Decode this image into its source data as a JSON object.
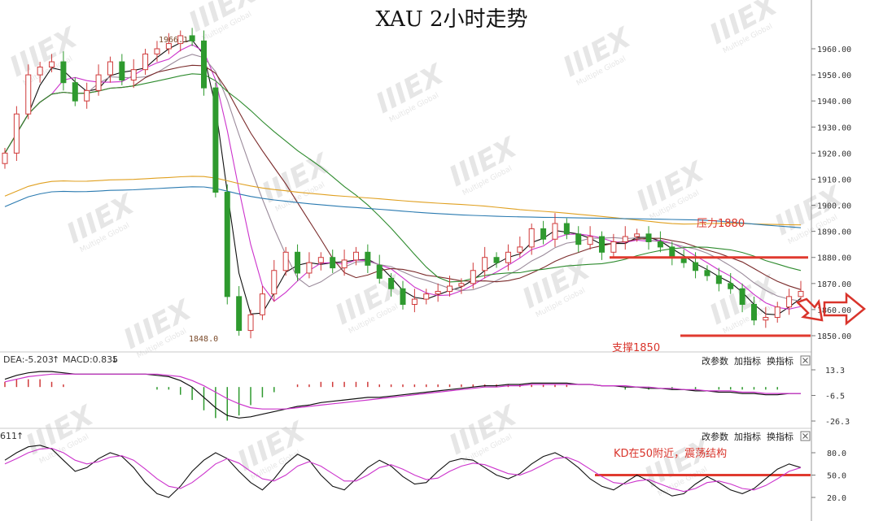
{
  "chart_data": {
    "title": "XAU 2小时走势",
    "type": "candlestick",
    "price_axis": {
      "ticks": [
        1850.0,
        1860.0,
        1870.0,
        1880.0,
        1890.0,
        1900.0,
        1910.0,
        1920.0,
        1930.0,
        1940.0,
        1950.0,
        1960.0
      ],
      "range": [
        1843,
        1972
      ]
    },
    "high_label": "1966.1",
    "low_label": "1848.0",
    "high": 1966.1,
    "low": 1848.0,
    "levels": [
      {
        "price": 1880,
        "label": "压力1880",
        "color": "#e03a2f"
      },
      {
        "price": 1850,
        "label": "支撑1850",
        "color": "#e03a2f"
      }
    ],
    "close_series": [
      1920,
      1935,
      1950,
      1953,
      1955,
      1947,
      1940,
      1944,
      1950,
      1955,
      1948,
      1952,
      1958,
      1960,
      1962,
      1965,
      1963,
      1945,
      1905,
      1865,
      1852,
      1858,
      1866,
      1875,
      1882,
      1874,
      1878,
      1880,
      1876,
      1879,
      1882,
      1877,
      1872,
      1868,
      1862,
      1864,
      1866,
      1867,
      1869,
      1870,
      1875,
      1880,
      1878,
      1882,
      1884,
      1891,
      1887,
      1893,
      1889,
      1885,
      1888,
      1882,
      1886,
      1888,
      1889,
      1886,
      1884,
      1880,
      1878,
      1875,
      1873,
      1870,
      1868,
      1862,
      1856,
      1857,
      1861,
      1865,
      1867
    ],
    "moving_averages": [
      {
        "color": "#111111"
      },
      {
        "color": "#cc33cc"
      },
      {
        "color": "#9a8a9a"
      },
      {
        "color": "#7a2a2a"
      },
      {
        "color": "#2e8b2e"
      },
      {
        "color": "#e0a020"
      },
      {
        "color": "#2a7ab0"
      }
    ],
    "macd": {
      "label_dea": "DEA:-5.203",
      "label_macd": "MACD:0.835",
      "ticks": [
        "13.3",
        "-6.5",
        "-26.3"
      ],
      "tick_values": [
        13.3,
        -6.5,
        -26.3
      ],
      "dif": [
        6,
        9,
        11,
        12,
        12,
        11,
        10,
        10,
        10,
        10,
        10,
        10,
        10,
        9,
        8,
        5,
        0,
        -8,
        -16,
        -22,
        -24,
        -23,
        -21,
        -19,
        -17,
        -15,
        -14,
        -12,
        -11,
        -10,
        -9,
        -8,
        -8,
        -7,
        -6,
        -5,
        -4,
        -3,
        -2,
        -1,
        0,
        1,
        1,
        2,
        2,
        3,
        3,
        3,
        3,
        2,
        2,
        1,
        1,
        0,
        0,
        -1,
        -1,
        -2,
        -2,
        -3,
        -3,
        -4,
        -4,
        -5,
        -5,
        -6,
        -6,
        -5,
        -5
      ],
      "dea": [
        4,
        6,
        8,
        9,
        10,
        10,
        10,
        10,
        10,
        10,
        10,
        10,
        10,
        10,
        9,
        8,
        5,
        1,
        -4,
        -9,
        -13,
        -16,
        -17,
        -17,
        -17,
        -16,
        -15,
        -14,
        -13,
        -12,
        -11,
        -10,
        -9,
        -8,
        -7,
        -6,
        -5,
        -4,
        -3,
        -2,
        -1,
        0,
        0,
        1,
        1,
        2,
        2,
        2,
        2,
        2,
        2,
        1,
        1,
        1,
        0,
        0,
        -1,
        -1,
        -2,
        -2,
        -3,
        -3,
        -3,
        -4,
        -4,
        -5,
        -5,
        -5,
        -5
      ]
    },
    "kd": {
      "label": "611",
      "ticks": [
        "80.0",
        "50.0",
        "20.0"
      ],
      "tick_values": [
        80,
        50,
        20
      ],
      "annotation": "KD在50附近，震荡结构",
      "reference_level": 50,
      "k": [
        70,
        80,
        88,
        90,
        85,
        70,
        55,
        60,
        72,
        80,
        75,
        60,
        40,
        25,
        20,
        35,
        55,
        70,
        80,
        72,
        55,
        40,
        30,
        45,
        65,
        78,
        70,
        50,
        35,
        30,
        45,
        60,
        70,
        62,
        48,
        38,
        40,
        55,
        68,
        72,
        70,
        60,
        50,
        45,
        52,
        65,
        75,
        80,
        72,
        60,
        45,
        35,
        30,
        40,
        50,
        42,
        30,
        22,
        25,
        38,
        48,
        40,
        30,
        25,
        32,
        45,
        58,
        65,
        60
      ],
      "d": [
        65,
        72,
        80,
        85,
        86,
        80,
        70,
        65,
        68,
        74,
        76,
        70,
        58,
        45,
        35,
        32,
        40,
        52,
        65,
        72,
        66,
        55,
        45,
        42,
        50,
        62,
        68,
        62,
        52,
        42,
        42,
        50,
        60,
        64,
        58,
        50,
        44,
        46,
        55,
        62,
        66,
        64,
        58,
        52,
        50,
        56,
        64,
        72,
        74,
        68,
        58,
        48,
        40,
        38,
        42,
        44,
        38,
        32,
        28,
        32,
        40,
        42,
        38,
        32,
        30,
        36,
        45,
        55,
        60
      ]
    }
  },
  "toolbar": {
    "macd_panel": {
      "b1": "改参数",
      "b2": "加指标",
      "b3": "换指标"
    },
    "kd_panel": {
      "b1": "改参数",
      "b2": "加指标",
      "b3": "换指标"
    }
  },
  "watermark_text": "IIIEX",
  "watermark_sub": "Multiple Global"
}
